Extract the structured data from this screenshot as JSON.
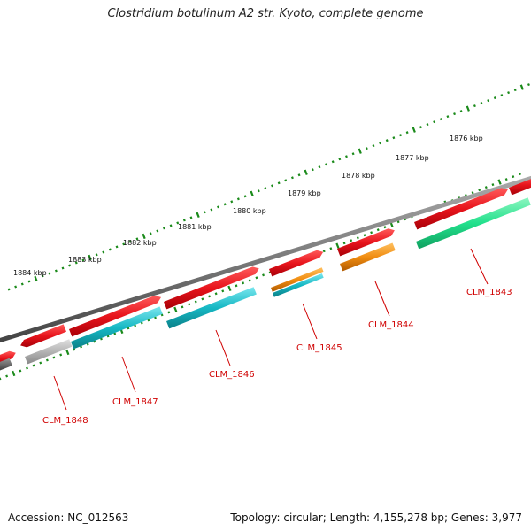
{
  "title": "Clostridium botulinum A2 str. Kyoto, complete genome",
  "footer": {
    "accession": "Accession: NC_012563",
    "topology": "Topology: circular; Length: 4,155,278 bp; Genes: 3,977"
  },
  "ruler_labels": [
    "1876 kbp",
    "1877 kbp",
    "1878 kbp",
    "1879 kbp",
    "1880 kbp",
    "1881 kbp",
    "1882 kbp",
    "1883 kbp",
    "1884 kbp"
  ],
  "gene_labels": [
    "CLM_1843",
    "CLM_1844",
    "CLM_1845",
    "CLM_1846",
    "CLM_1847",
    "CLM_1848"
  ],
  "colors": {
    "backbone": "#7a7a7a",
    "cds_red": "#e8141c",
    "cyan": "#16b8c4",
    "orange": "#f08c10",
    "green": "#22e08c",
    "grey": "#b4b4b4",
    "darkgrey": "#666666",
    "ruler": "#1a8a1a",
    "label": "#d00000"
  }
}
